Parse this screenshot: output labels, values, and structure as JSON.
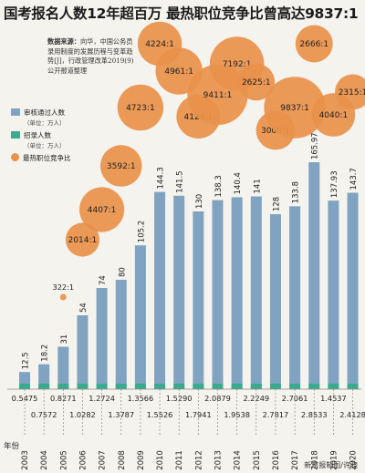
{
  "title": "国考报名人数12年超百万 最热职位竞争比曾高达9837:1",
  "source": {
    "label": "数据来源：",
    "text": "向华，中国公务员录用制度的发展历程与变革趋势[J]，行政管理改革2019(9)公开报道整理"
  },
  "legend": {
    "applicants": "审核通过人数",
    "applicants_unit": "（单位：万人）",
    "hires": "招录人数",
    "hires_unit": "（单位：万人）",
    "ratio": "最热职位竞争比"
  },
  "credit": "新京报制图/许骁",
  "colors": {
    "applicants": "#7fa3c0",
    "hires": "#3bab8e",
    "ratio": "#e8914a"
  },
  "chart_data": {
    "type": "bar",
    "xlabel": "年份",
    "categories": [
      "2003",
      "2004",
      "2005",
      "2006",
      "2007",
      "2008",
      "2009",
      "2010",
      "2011",
      "2012",
      "2013",
      "2014",
      "2015",
      "2016",
      "2017",
      "2018",
      "2019",
      "2020"
    ],
    "series": [
      {
        "name": "审核通过人数",
        "values": [
          12.5,
          18.2,
          31,
          54,
          74,
          80,
          105.2,
          144.3,
          141.5,
          130,
          138.3,
          140.4,
          141,
          128,
          133.8,
          165.97,
          137.93,
          143.7
        ]
      },
      {
        "name": "招录人数",
        "values": [
          0.5475,
          0.7572,
          0.8271,
          1.0282,
          1.2724,
          1.3787,
          1.3566,
          1.5526,
          1.529,
          1.7941,
          2.0879,
          1.9538,
          2.2249,
          2.7817,
          2.7061,
          2.8533,
          1.4537,
          2.4128
        ]
      }
    ],
    "hires_labels": [
      "0.5475",
      "0.7572",
      "0.8271",
      "1.0282",
      "1.2724",
      "1.3787",
      "1.3566",
      "1.5526",
      "1.5290",
      "1.7941",
      "2.0879",
      "1.9538",
      "2.2249",
      "2.7817",
      "2.7061",
      "2.8533",
      "1.4537",
      "2.4128"
    ],
    "ratios": [
      {
        "year": "2005",
        "ratio": null,
        "label": "322:1"
      },
      {
        "year": "2006",
        "ratio": 2014,
        "label": "2014:1"
      },
      {
        "year": "2007",
        "ratio": 4407,
        "label": "4407:1"
      },
      {
        "year": "2008",
        "ratio": 3592,
        "label": "3592:1"
      },
      {
        "year": "2009",
        "ratio": 4723,
        "label": "4723:1"
      },
      {
        "year": "2010",
        "ratio": 4224,
        "label": "4224:1"
      },
      {
        "year": "2011",
        "ratio": 4961,
        "label": "4961:1"
      },
      {
        "year": "2012",
        "ratio": 4124,
        "label": "4124:1"
      },
      {
        "year": "2013",
        "ratio": 9411,
        "label": "9411:1"
      },
      {
        "year": "2014",
        "ratio": 7192,
        "label": "7192:1"
      },
      {
        "year": "2015",
        "ratio": 2625,
        "label": "2625:1"
      },
      {
        "year": "2016",
        "ratio": 3000,
        "label": "3000:1"
      },
      {
        "year": "2017",
        "ratio": 9837,
        "label": "9837:1"
      },
      {
        "year": "2018",
        "ratio": 2666,
        "label": "2666:1"
      },
      {
        "year": "2019",
        "ratio": 4040,
        "label": "4040:1"
      },
      {
        "year": "2020",
        "ratio": 2315,
        "label": "2315:1"
      }
    ],
    "ylim": [
      0,
      175
    ]
  }
}
